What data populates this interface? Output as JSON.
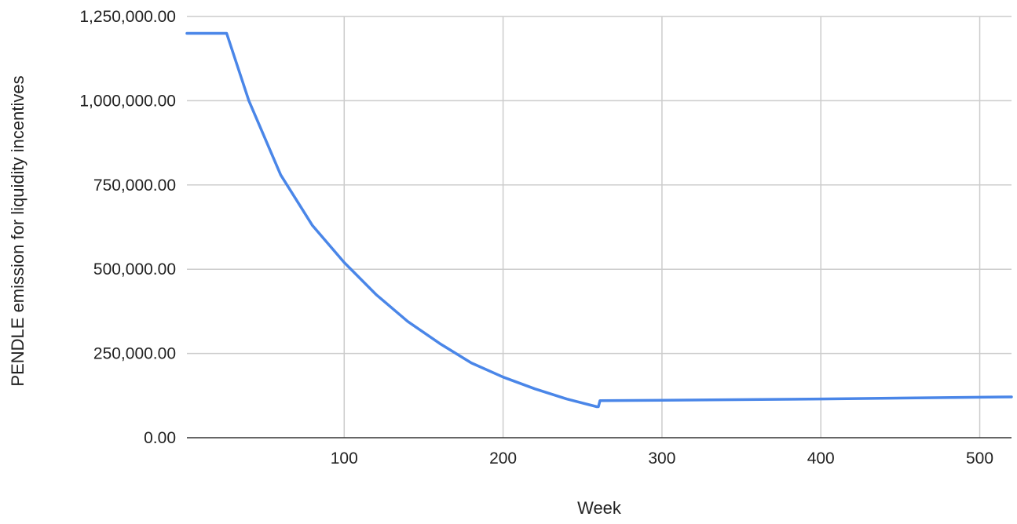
{
  "chart_data": {
    "type": "line",
    "title": "",
    "xlabel": "Week",
    "ylabel": "PENDLE emission for liquidity incentives",
    "xlim": [
      1,
      520
    ],
    "ylim": [
      0,
      1250000
    ],
    "x_ticks": [
      100,
      200,
      300,
      400,
      500
    ],
    "x_tick_labels": [
      "100",
      "200",
      "300",
      "400",
      "500"
    ],
    "y_ticks": [
      0,
      250000,
      500000,
      750000,
      1000000,
      1250000
    ],
    "y_tick_labels": [
      "0.00",
      "250,000.00",
      "500,000.00",
      "750,000.00",
      "1,000,000.00",
      "1,250,000.00"
    ],
    "grid": true,
    "legend": "none",
    "series": [
      {
        "color": "#4a86e8",
        "x": [
          1,
          26,
          40,
          60,
          80,
          100,
          120,
          140,
          160,
          180,
          200,
          220,
          240,
          259,
          260,
          261,
          300,
          400,
          500,
          520
        ],
        "y": [
          1200000,
          1200000,
          1000000,
          780000,
          630000,
          520000,
          425000,
          345000,
          280000,
          222000,
          180000,
          145000,
          115000,
          92000,
          92000,
          110000,
          111000,
          115000,
          120000,
          121000
        ]
      }
    ]
  }
}
